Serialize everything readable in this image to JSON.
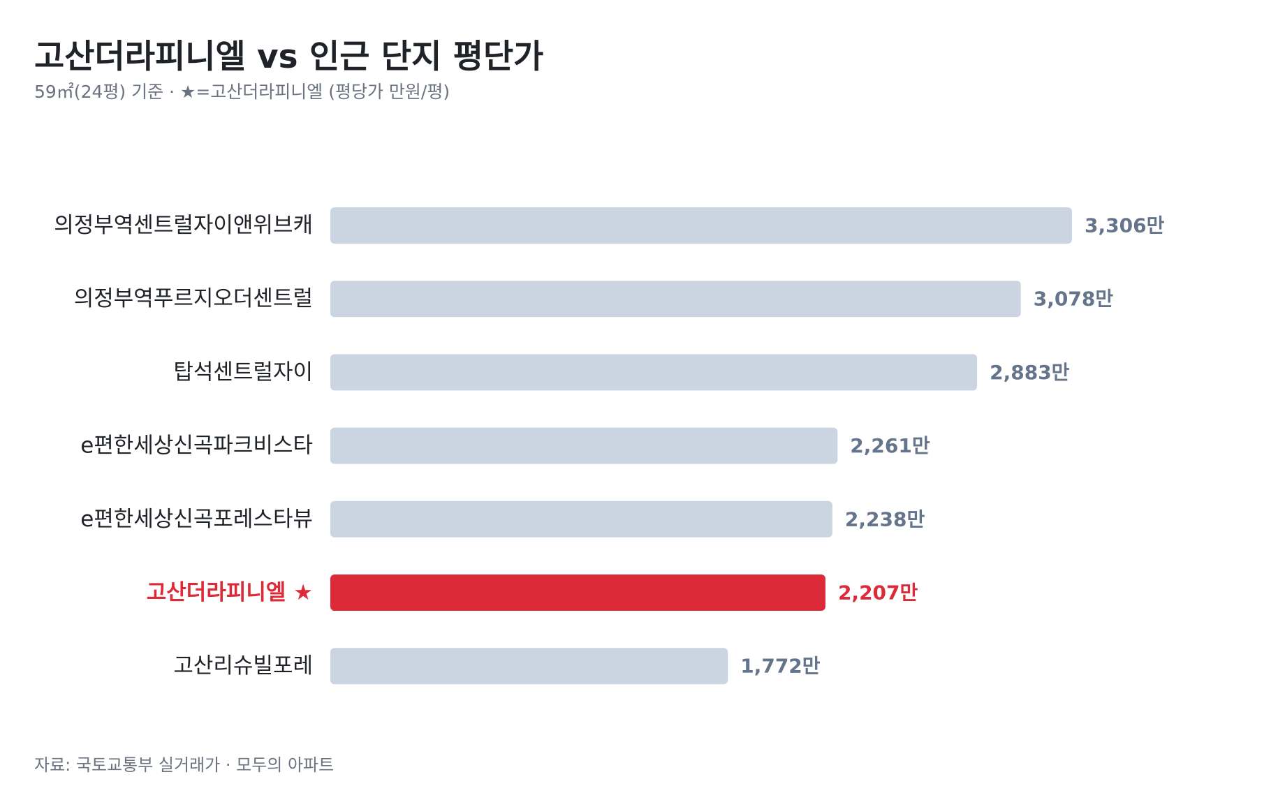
{
  "header": {
    "title": "고산더라피니엘 vs 인근 단지 평단가",
    "subtitle": "59㎡(24평) 기준 · ★=고산더라피니엘 (평당가 만원/평)"
  },
  "footer": {
    "source": "자료: 국토교통부 실거래가 · 모두의 아파트"
  },
  "colors": {
    "bar_default": "#cbd5e1",
    "bar_highlight": "#dc2a38",
    "value_default": "#64748b",
    "label_default": "#1f2328"
  },
  "chart_data": {
    "type": "bar",
    "orientation": "horizontal",
    "categories": [
      "의정부역센트럴자이앤위브캐",
      "의정부역푸르지오더센트럴",
      "탑석센트럴자이",
      "e편한세상신곡파크비스타",
      "e편한세상신곡포레스타뷰",
      "고산더라피니엘 ★",
      "고산리슈빌포레"
    ],
    "values": [
      3306,
      3078,
      2883,
      2261,
      2238,
      2207,
      1772
    ],
    "value_labels": [
      "3,306만",
      "3,078만",
      "2,883만",
      "2,261만",
      "2,238만",
      "2,207만",
      "1,772만"
    ],
    "highlight": "고산더라피니엘 ★",
    "xlim": [
      0,
      3306
    ],
    "grid": false,
    "legend": "none",
    "xlabel": "",
    "ylabel": ""
  }
}
